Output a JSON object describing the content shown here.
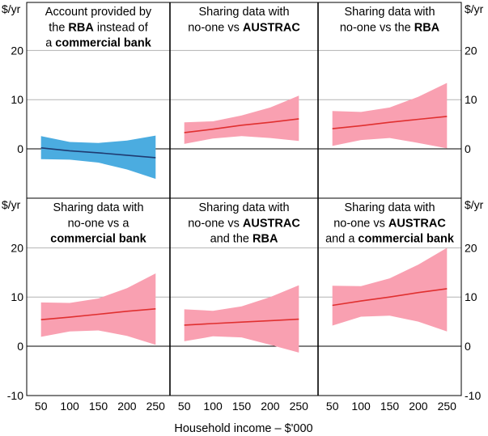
{
  "chart_data": {
    "type": "line",
    "layout": "2x3 small multiples with confidence bands",
    "y_unit_label": "$/yr",
    "xlabel": "Household income – $'000",
    "x": [
      50,
      100,
      150,
      200,
      250
    ],
    "xlim": [
      25,
      275
    ],
    "ylim": [
      -10,
      20
    ],
    "yticks": [
      -10,
      0,
      10,
      20
    ],
    "colors": {
      "negative_band": "#4BACE0",
      "negative_line": "#1F3A70",
      "positive_band": "#F9A0B1",
      "positive_line": "#E03030"
    },
    "panels": [
      {
        "title": [
          [
            {
              "text": "Account provided by",
              "bold": false
            }
          ],
          [
            {
              "text": "the ",
              "bold": false
            },
            {
              "text": "RBA",
              "bold": true
            },
            {
              "text": " instead of",
              "bold": false
            }
          ],
          [
            {
              "text": "a ",
              "bold": false
            },
            {
              "text": "commercial bank",
              "bold": true
            }
          ]
        ],
        "sign": "negative",
        "estimate": [
          0.2,
          -0.4,
          -0.8,
          -1.3,
          -1.8
        ],
        "lower": [
          -2.1,
          -2.2,
          -2.8,
          -4.2,
          -6.1
        ],
        "upper": [
          2.6,
          1.4,
          1.2,
          1.7,
          2.7
        ]
      },
      {
        "title": [
          [
            {
              "text": "Sharing data with",
              "bold": false
            }
          ],
          [
            {
              "text": "no-one vs ",
              "bold": false
            },
            {
              "text": "AUSTRAC",
              "bold": true
            }
          ]
        ],
        "sign": "positive",
        "estimate": [
          3.3,
          4.0,
          4.8,
          5.4,
          6.1
        ],
        "lower": [
          1.0,
          2.1,
          2.6,
          2.2,
          1.6
        ],
        "upper": [
          5.4,
          5.6,
          6.8,
          8.4,
          10.8
        ]
      },
      {
        "title": [
          [
            {
              "text": "Sharing data with",
              "bold": false
            }
          ],
          [
            {
              "text": "no-one vs the ",
              "bold": false
            },
            {
              "text": "RBA",
              "bold": true
            }
          ]
        ],
        "sign": "positive",
        "estimate": [
          4.1,
          4.7,
          5.4,
          6.0,
          6.6
        ],
        "lower": [
          0.6,
          1.8,
          2.2,
          1.2,
          0.1
        ],
        "upper": [
          7.7,
          7.5,
          8.4,
          10.6,
          13.4
        ]
      },
      {
        "title": [
          [
            {
              "text": "Sharing data with",
              "bold": false
            }
          ],
          [
            {
              "text": "no-one vs a",
              "bold": false
            }
          ],
          [
            {
              "text": "commercial bank",
              "bold": true
            }
          ]
        ],
        "sign": "positive",
        "estimate": [
          5.4,
          5.9,
          6.5,
          7.1,
          7.6
        ],
        "lower": [
          1.9,
          3.0,
          3.2,
          2.1,
          0.3
        ],
        "upper": [
          8.9,
          8.8,
          9.7,
          11.8,
          14.8
        ]
      },
      {
        "title": [
          [
            {
              "text": "Sharing data with",
              "bold": false
            }
          ],
          [
            {
              "text": "no-one vs ",
              "bold": false
            },
            {
              "text": "AUSTRAC",
              "bold": true
            }
          ],
          [
            {
              "text": "and the ",
              "bold": false
            },
            {
              "text": "RBA",
              "bold": true
            }
          ]
        ],
        "sign": "positive",
        "estimate": [
          4.3,
          4.6,
          4.9,
          5.2,
          5.5
        ],
        "lower": [
          1.0,
          2.0,
          1.8,
          0.3,
          -1.3
        ],
        "upper": [
          7.5,
          7.2,
          8.1,
          10.0,
          12.4
        ]
      },
      {
        "title": [
          [
            {
              "text": "Sharing data with",
              "bold": false
            }
          ],
          [
            {
              "text": "no-one vs ",
              "bold": false
            },
            {
              "text": "AUSTRAC",
              "bold": true
            }
          ],
          [
            {
              "text": "and a ",
              "bold": false
            },
            {
              "text": "commercial bank",
              "bold": true
            }
          ]
        ],
        "sign": "positive",
        "estimate": [
          8.3,
          9.2,
          10.0,
          10.9,
          11.7
        ],
        "lower": [
          4.2,
          6.0,
          6.2,
          5.0,
          3.0
        ],
        "upper": [
          12.3,
          12.2,
          13.8,
          16.6,
          20.0
        ]
      }
    ]
  }
}
